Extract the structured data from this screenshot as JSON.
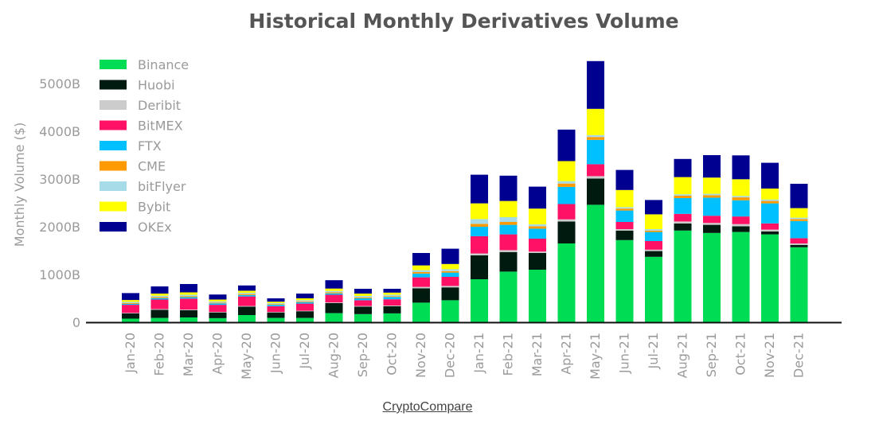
{
  "chart_data": {
    "type": "bar",
    "stacked": true,
    "title": "Historical Monthly Derivatives Volume",
    "ylabel": "Monthly Volume ($)",
    "xlabel": "",
    "ylim": [
      0,
      5500
    ],
    "yticks": [
      0,
      1000,
      2000,
      3000,
      4000,
      5000
    ],
    "ytick_labels": [
      "0",
      "1000B",
      "2000B",
      "3000B",
      "4000B",
      "5000B"
    ],
    "legend_position": "top-left",
    "grid": false,
    "categories": [
      "Jan-20",
      "Feb-20",
      "Mar-20",
      "Apr-20",
      "May-20",
      "Jun-20",
      "Jul-20",
      "Aug-20",
      "Sep-20",
      "Oct-20",
      "Nov-20",
      "Dec-20",
      "Jan-21",
      "Feb-21",
      "Mar-21",
      "Apr-21",
      "May-21",
      "Jun-21",
      "Jul-21",
      "Aug-21",
      "Sep-21",
      "Oct-21",
      "Nov-21",
      "Dec-21"
    ],
    "series": [
      {
        "name": "Binance",
        "color": "#00dd55",
        "values": [
          75,
          90,
          100,
          85,
          150,
          90,
          90,
          190,
          170,
          185,
          410,
          460,
          900,
          1060,
          1100,
          1650,
          2460,
          1720,
          1370,
          1920,
          1870,
          1890,
          1840,
          1570
        ]
      },
      {
        "name": "Huobi",
        "color": "#001a10",
        "values": [
          110,
          170,
          150,
          120,
          175,
          115,
          140,
          210,
          155,
          150,
          300,
          270,
          500,
          410,
          350,
          460,
          550,
          200,
          120,
          150,
          170,
          120,
          60,
          50
        ]
      },
      {
        "name": "Deribit",
        "color": "#cccccc",
        "values": [
          10,
          15,
          15,
          10,
          15,
          10,
          10,
          15,
          15,
          15,
          30,
          30,
          40,
          40,
          30,
          45,
          50,
          30,
          30,
          40,
          40,
          45,
          40,
          30
        ]
      },
      {
        "name": "BitMEX",
        "color": "#ff1166",
        "values": [
          170,
          200,
          230,
          150,
          200,
          120,
          150,
          160,
          120,
          130,
          200,
          190,
          360,
          330,
          270,
          320,
          250,
          150,
          180,
          160,
          150,
          160,
          130,
          110
        ]
      },
      {
        "name": "FTX",
        "color": "#00c0ff",
        "values": [
          20,
          30,
          30,
          30,
          30,
          30,
          30,
          30,
          40,
          50,
          80,
          90,
          200,
          200,
          210,
          360,
          510,
          240,
          190,
          330,
          380,
          340,
          420,
          360
        ]
      },
      {
        "name": "CME",
        "color": "#ff9900",
        "values": [
          15,
          20,
          20,
          15,
          20,
          15,
          15,
          20,
          20,
          15,
          30,
          30,
          60,
          60,
          50,
          70,
          60,
          40,
          30,
          50,
          50,
          60,
          50,
          40
        ]
      },
      {
        "name": "bitFlyer",
        "color": "#a8dbe8",
        "values": [
          25,
          30,
          30,
          25,
          25,
          20,
          25,
          30,
          30,
          30,
          40,
          40,
          100,
          100,
          40,
          50,
          40,
          30,
          30,
          30,
          30,
          30,
          30,
          30
        ]
      },
      {
        "name": "Bybit",
        "color": "#ffff00",
        "values": [
          40,
          45,
          50,
          40,
          45,
          30,
          40,
          50,
          50,
          45,
          100,
          110,
          330,
          340,
          330,
          420,
          550,
          360,
          310,
          360,
          340,
          350,
          230,
          200
        ]
      },
      {
        "name": "OKEx",
        "color": "#000090",
        "values": [
          145,
          150,
          175,
          105,
          110,
          70,
          100,
          175,
          100,
          80,
          260,
          320,
          600,
          530,
          460,
          660,
          1000,
          420,
          300,
          380,
          470,
          500,
          540,
          510
        ]
      }
    ]
  },
  "source": {
    "label": "CryptoCompare"
  }
}
